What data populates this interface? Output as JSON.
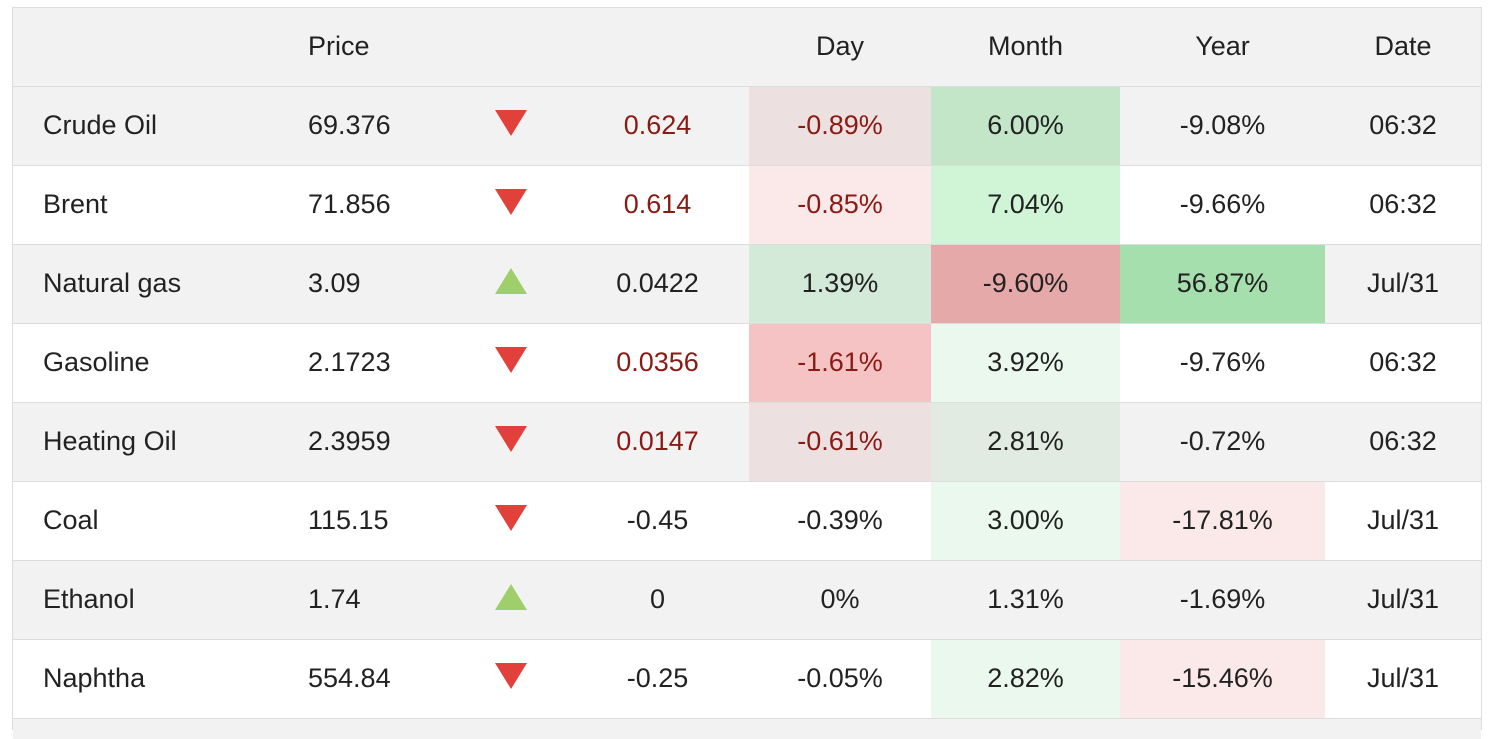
{
  "header": {
    "blank": "",
    "price": "Price",
    "arrow": "",
    "change": "",
    "day": "Day",
    "month": "Month",
    "year": "Year",
    "date": "Date"
  },
  "colors": {
    "up_arrow": "#9ecf6a",
    "down_arrow": "#e2403a",
    "negative_text": "#8b1a14"
  },
  "rows": [
    {
      "name": "Crude Oil",
      "price": "69.376",
      "direction": "down",
      "change": "0.624",
      "change_negative": true,
      "day": "-0.89%",
      "month": "6.00%",
      "year": "-9.08%",
      "date": "06:32",
      "day_bg": "#ede0e0",
      "month_bg": "#c3e6c9",
      "year_bg": ""
    },
    {
      "name": "Brent",
      "price": "71.856",
      "direction": "down",
      "change": "0.614",
      "change_negative": true,
      "day": "-0.85%",
      "month": "7.04%",
      "year": "-9.66%",
      "date": "06:32",
      "day_bg": "#fbe8e8",
      "month_bg": "#cff5d6",
      "year_bg": ""
    },
    {
      "name": "Natural gas",
      "price": "3.09",
      "direction": "up",
      "change": "0.0422",
      "change_negative": false,
      "day": "1.39%",
      "month": "-9.60%",
      "year": "56.87%",
      "date": "Jul/31",
      "day_bg": "#d2ead7",
      "month_bg": "#e6a9a9",
      "year_bg": "#a6dfae"
    },
    {
      "name": "Gasoline",
      "price": "2.1723",
      "direction": "down",
      "change": "0.0356",
      "change_negative": true,
      "day": "-1.61%",
      "month": "3.92%",
      "year": "-9.76%",
      "date": "06:32",
      "day_bg": "#f5c3c3",
      "month_bg": "#ebf8ee",
      "year_bg": ""
    },
    {
      "name": "Heating Oil",
      "price": "2.3959",
      "direction": "down",
      "change": "0.0147",
      "change_negative": true,
      "day": "-0.61%",
      "month": "2.81%",
      "year": "-0.72%",
      "date": "06:32",
      "day_bg": "#ede0e0",
      "month_bg": "#e1ebe2",
      "year_bg": ""
    },
    {
      "name": "Coal",
      "price": "115.15",
      "direction": "down",
      "change": "-0.45",
      "change_negative": false,
      "day": "-0.39%",
      "month": "3.00%",
      "year": "-17.81%",
      "date": "Jul/31",
      "day_bg": "",
      "month_bg": "#ebf8ee",
      "year_bg": "#fbe9e9"
    },
    {
      "name": "Ethanol",
      "price": "1.74",
      "direction": "up",
      "change": "0",
      "change_negative": false,
      "day": "0%",
      "month": "1.31%",
      "year": "-1.69%",
      "date": "Jul/31",
      "day_bg": "",
      "month_bg": "",
      "year_bg": ""
    },
    {
      "name": "Naphtha",
      "price": "554.84",
      "direction": "down",
      "change": "-0.25",
      "change_negative": false,
      "day": "-0.05%",
      "month": "2.82%",
      "year": "-15.46%",
      "date": "Jul/31",
      "day_bg": "",
      "month_bg": "#ebf8ee",
      "year_bg": "#fbe9e9"
    }
  ]
}
